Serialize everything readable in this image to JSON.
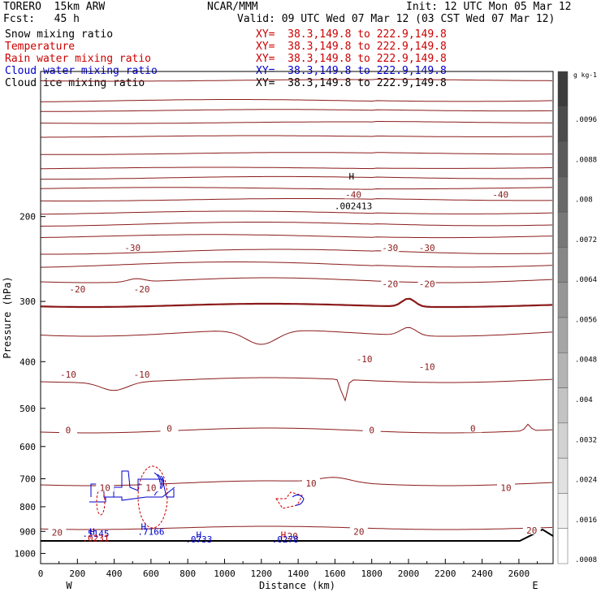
{
  "header": {
    "model": "TORERO  15km ARW",
    "org": "NCAR/MMM",
    "init": "Init: 12 UTC Mon 05 Mar 12",
    "fcst": "Fcst:   45 h",
    "valid": "Valid: 09 UTC Wed 07 Mar 12 (03 CST Wed 07 Mar 12)"
  },
  "legend": [
    {
      "label": "Snow mixing ratio",
      "color": "#000000",
      "xy": "XY=  38.3,149.8 to 222.9,149.8",
      "xy_color": "#cc0000"
    },
    {
      "label": "Temperature",
      "color": "#cc0000",
      "xy": "XY=  38.3,149.8 to 222.9,149.8",
      "xy_color": "#cc0000"
    },
    {
      "label": "Rain water mixing ratio",
      "color": "#cc0000",
      "xy": "XY=  38.3,149.8 to 222.9,149.8",
      "xy_color": "#cc0000"
    },
    {
      "label": "Cloud water mixing ratio",
      "color": "#0000cc",
      "xy": "XY=  38.3,149.8 to 222.9,149.8",
      "xy_color": "#0000cc"
    },
    {
      "label": "Cloud ice mixing ratio",
      "color": "#000000",
      "xy": "XY=  38.3,149.8 to 222.9,149.8",
      "xy_color": "#000000"
    }
  ],
  "chart_data": {
    "type": "contour-cross-section",
    "xlabel": "Distance (km)",
    "ylabel": "Pressure (hPa)",
    "xlim": [
      0,
      2780
    ],
    "ylim": [
      1050,
      100
    ],
    "y_scale": "log",
    "x_ticks": [
      "0",
      "200",
      "400",
      "600",
      "800",
      "1000",
      "1200",
      "1400",
      "1600",
      "1800",
      "2000",
      "2200",
      "2400",
      "2600"
    ],
    "y_ticks": [
      "200",
      "300",
      "400",
      "500",
      "600",
      "700",
      "800",
      "900",
      "1000"
    ],
    "x_end_labels": {
      "left": "W",
      "right": "E"
    },
    "temperature_labels": [
      {
        "text": "-40",
        "x": 1700,
        "p": 180
      },
      {
        "text": "-40",
        "x": 2500,
        "p": 180
      },
      {
        "text": "-30",
        "x": 500,
        "p": 232
      },
      {
        "text": "-30",
        "x": 1900,
        "p": 232
      },
      {
        "text": "-30",
        "x": 2100,
        "p": 232
      },
      {
        "text": "-20",
        "x": 200,
        "p": 283
      },
      {
        "text": "-20",
        "x": 550,
        "p": 283
      },
      {
        "text": "-20",
        "x": 1900,
        "p": 276
      },
      {
        "text": "-20",
        "x": 2100,
        "p": 276
      },
      {
        "text": "-10",
        "x": 150,
        "p": 425
      },
      {
        "text": "-10",
        "x": 550,
        "p": 425
      },
      {
        "text": "-10",
        "x": 1760,
        "p": 395
      },
      {
        "text": "-10",
        "x": 2100,
        "p": 410
      },
      {
        "text": "0",
        "x": 150,
        "p": 555
      },
      {
        "text": "0",
        "x": 700,
        "p": 550
      },
      {
        "text": "0",
        "x": 1800,
        "p": 555
      },
      {
        "text": "0",
        "x": 2350,
        "p": 550
      },
      {
        "text": "10",
        "x": 350,
        "p": 730
      },
      {
        "text": "10",
        "x": 600,
        "p": 730
      },
      {
        "text": "10",
        "x": 1470,
        "p": 715
      },
      {
        "text": "10",
        "x": 2530,
        "p": 730
      },
      {
        "text": "20",
        "x": 90,
        "p": 905
      },
      {
        "text": "20",
        "x": 1370,
        "p": 920
      },
      {
        "text": "20",
        "x": 1730,
        "p": 900
      },
      {
        "text": "20",
        "x": 2670,
        "p": 895
      }
    ],
    "extrema_labels": [
      {
        "text": "H",
        "x": 1690,
        "p": 165,
        "color": "#000000"
      },
      {
        "text": ".002413",
        "x": 1700,
        "p": 190,
        "color": "#000000"
      },
      {
        "text": "H",
        "x": 280,
        "p": 900,
        "color": "#0000cc"
      },
      {
        "text": ".5145",
        "x": 300,
        "p": 910,
        "color": "#0000cc"
      },
      {
        "text": ".0231",
        "x": 300,
        "p": 930,
        "color": "#cc0000"
      },
      {
        "text": "H",
        "x": 560,
        "p": 880,
        "color": "#0000cc"
      },
      {
        "text": ".7166",
        "x": 600,
        "p": 900,
        "color": "#0000cc"
      },
      {
        "text": "H",
        "x": 860,
        "p": 915,
        "color": "#0000cc"
      },
      {
        "text": ".0733",
        "x": 860,
        "p": 935,
        "color": "#0000cc"
      },
      {
        "text": "H",
        "x": 1320,
        "p": 915,
        "color": "#cc0000"
      },
      {
        "text": ".0278",
        "x": 1330,
        "p": 935,
        "color": "#0000cc"
      }
    ],
    "colorbar": {
      "unit": "g kg-1",
      "ticks": [
        ".0096",
        ".0088",
        ".008",
        ".0072",
        ".0064",
        ".0056",
        ".0048",
        ".004",
        ".0032",
        ".0024",
        ".0016",
        ".0008"
      ]
    }
  }
}
